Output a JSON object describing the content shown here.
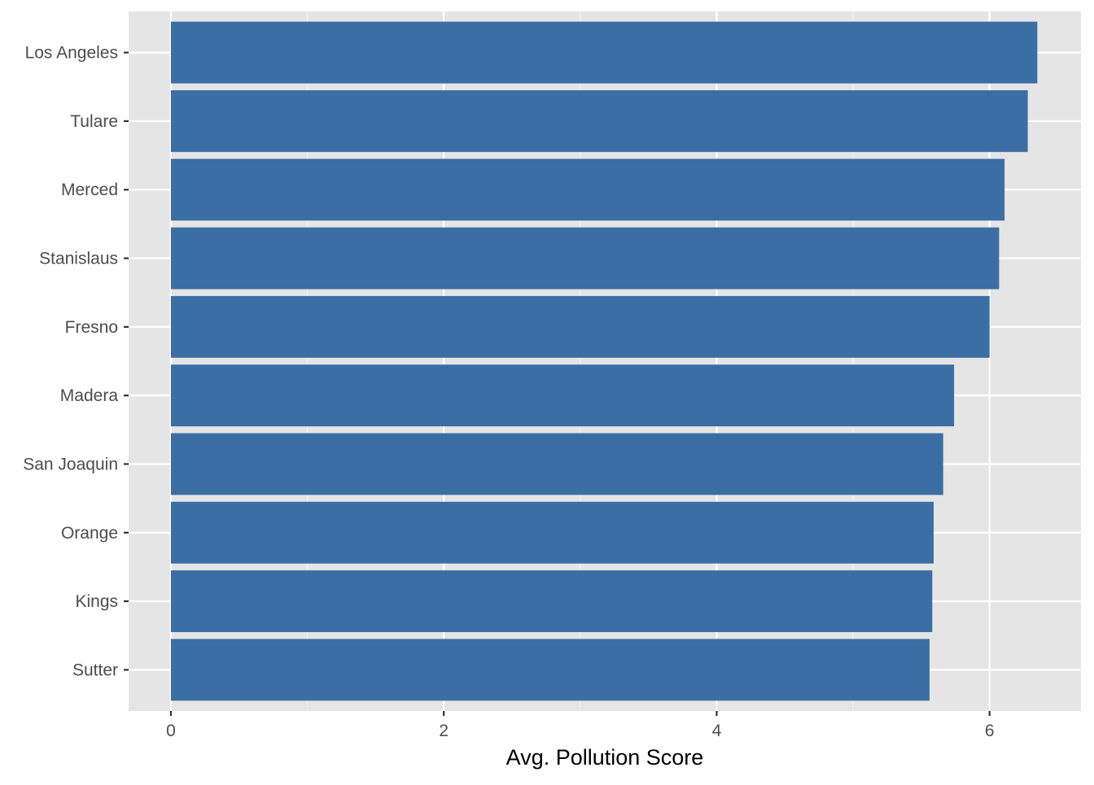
{
  "chart_data": {
    "type": "bar",
    "orientation": "horizontal",
    "categories": [
      "Los Angeles",
      "Tulare",
      "Merced",
      "Stanislaus",
      "Fresno",
      "Madera",
      "San Joaquin",
      "Orange",
      "Kings",
      "Sutter"
    ],
    "values": [
      6.35,
      6.28,
      6.11,
      6.07,
      6.0,
      5.74,
      5.66,
      5.59,
      5.58,
      5.56
    ],
    "title": "",
    "xlabel": "Avg. Pollution Score",
    "ylabel": "",
    "xlim": [
      -0.31,
      6.67
    ],
    "x_ticks": [
      0,
      2,
      4,
      6
    ],
    "x_tick_labels": [
      "0",
      "2",
      "4",
      "6"
    ],
    "grid": true,
    "legend": "none",
    "colors": {
      "bar": "#3a6ea5",
      "panel": "#e5e5e5",
      "grid_major": "#ffffff",
      "grid_minor": "#f2f2f2",
      "tick_label": "#4d4d4d",
      "axis_title": "#000000",
      "tick": "#333333"
    }
  }
}
